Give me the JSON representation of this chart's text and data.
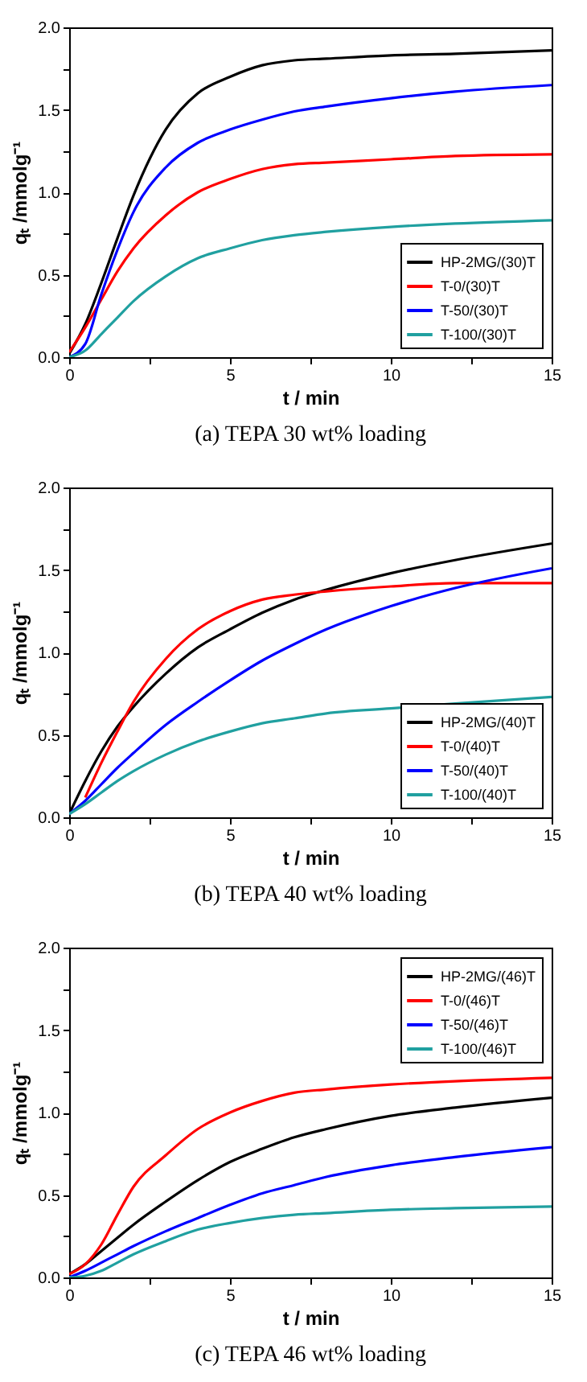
{
  "chart_data": [
    {
      "type": "line",
      "title": "(a)  TEPA 30 wt% loading",
      "xlabel": "t / min",
      "ylabel": "qₜ /mmolg⁻¹",
      "legend": "bottom right",
      "grid": false,
      "xlim": [
        0,
        15
      ],
      "ylim": [
        0,
        2.0
      ],
      "xticks": [
        0,
        {
          "value": 2.5,
          "label": null
        },
        5,
        {
          "value": 7.5,
          "label": null
        },
        10,
        {
          "value": 12.5,
          "label": null
        },
        15
      ],
      "yticks": [
        {
          "value": 0,
          "label": "0.0"
        },
        {
          "value": 0.25,
          "label": null
        },
        {
          "value": 0.5,
          "label": "0.5"
        },
        {
          "value": 0.75,
          "label": null
        },
        {
          "value": 1,
          "label": "1.0"
        },
        {
          "value": 1.25,
          "label": null
        },
        {
          "value": 1.5,
          "label": "1.5"
        },
        {
          "value": 1.75,
          "label": null
        },
        {
          "value": 2,
          "label": "2.0"
        }
      ],
      "x": [
        0,
        0.5,
        1,
        1.5,
        2,
        3,
        4,
        5,
        6,
        7,
        8,
        10,
        12,
        15
      ],
      "series": [
        {
          "name": "HP-2MG/(30)T",
          "color": "#000000",
          "values": [
            0.02,
            0.2,
            0.45,
            0.72,
            0.98,
            1.38,
            1.6,
            1.7,
            1.77,
            1.8,
            1.81,
            1.83,
            1.84,
            1.86
          ]
        },
        {
          "name": "T-0/(30)T",
          "color": "#ff0000",
          "values": [
            0.03,
            0.18,
            0.35,
            0.52,
            0.66,
            0.86,
            1.0,
            1.08,
            1.14,
            1.17,
            1.18,
            1.2,
            1.22,
            1.23
          ]
        },
        {
          "name": "T-50/(30)T",
          "color": "#0000ff",
          "values": [
            0,
            0.08,
            0.38,
            0.65,
            0.88,
            1.15,
            1.3,
            1.38,
            1.44,
            1.49,
            1.52,
            1.57,
            1.61,
            1.65
          ]
        },
        {
          "name": "T-100/(30)T",
          "color": "#20a0a0",
          "values": [
            0,
            0.04,
            0.14,
            0.24,
            0.34,
            0.49,
            0.6,
            0.66,
            0.71,
            0.74,
            0.76,
            0.79,
            0.81,
            0.83
          ]
        }
      ]
    },
    {
      "type": "line",
      "title": "(b)  TEPA 40 wt% loading",
      "xlabel": "t / min",
      "ylabel": "qₜ /mmolg⁻¹",
      "legend": "bottom right",
      "grid": false,
      "xlim": [
        0,
        15
      ],
      "ylim": [
        0,
        2.0
      ],
      "xticks": [
        0,
        {
          "value": 2.5,
          "label": null
        },
        5,
        {
          "value": 7.5,
          "label": null
        },
        10,
        {
          "value": 12.5,
          "label": null
        },
        15
      ],
      "yticks": [
        {
          "value": 0,
          "label": "0.0"
        },
        {
          "value": 0.25,
          "label": null
        },
        {
          "value": 0.5,
          "label": "0.5"
        },
        {
          "value": 0.75,
          "label": null
        },
        {
          "value": 1,
          "label": "1.0"
        },
        {
          "value": 1.25,
          "label": null
        },
        {
          "value": 1.5,
          "label": "1.5"
        },
        {
          "value": 1.75,
          "label": null
        },
        {
          "value": 2,
          "label": "2.0"
        }
      ],
      "x": [
        0,
        0.5,
        1,
        1.5,
        2,
        3,
        4,
        5,
        6,
        7,
        8,
        10,
        12,
        15
      ],
      "series": [
        {
          "name": "HP-2MG/(40)T",
          "color": "#000000",
          "values": [
            0.02,
            0.22,
            0.4,
            0.55,
            0.67,
            0.87,
            1.03,
            1.14,
            1.24,
            1.32,
            1.38,
            1.48,
            1.56,
            1.66
          ]
        },
        {
          "name": "T-0/(40)T",
          "color": "#ff0000",
          "values": [
            null,
            0.12,
            0.33,
            0.52,
            0.7,
            0.96,
            1.14,
            1.25,
            1.32,
            1.35,
            1.37,
            1.4,
            1.42,
            1.42
          ]
        },
        {
          "name": "T-50/(40)T",
          "color": "#0000ff",
          "values": [
            0.02,
            0.1,
            0.2,
            0.3,
            0.39,
            0.56,
            0.7,
            0.83,
            0.95,
            1.05,
            1.14,
            1.28,
            1.39,
            1.51
          ]
        },
        {
          "name": "T-100/(40)T",
          "color": "#20a0a0",
          "values": [
            0.02,
            0.08,
            0.15,
            0.22,
            0.28,
            0.38,
            0.46,
            0.52,
            0.57,
            0.6,
            0.63,
            0.66,
            0.69,
            0.73
          ]
        }
      ]
    },
    {
      "type": "line",
      "title": "(c)  TEPA 46 wt% loading",
      "xlabel": "t / min",
      "ylabel": "qₜ /mmolg⁻¹",
      "legend": "top right",
      "grid": false,
      "xlim": [
        0,
        15
      ],
      "ylim": [
        0,
        2.0
      ],
      "xticks": [
        0,
        {
          "value": 2.5,
          "label": null
        },
        5,
        {
          "value": 7.5,
          "label": null
        },
        10,
        {
          "value": 12.5,
          "label": null
        },
        15
      ],
      "yticks": [
        {
          "value": 0,
          "label": "0.0"
        },
        {
          "value": 0.25,
          "label": null
        },
        {
          "value": 0.5,
          "label": "0.5"
        },
        {
          "value": 0.75,
          "label": null
        },
        {
          "value": 1,
          "label": "1.0"
        },
        {
          "value": 1.25,
          "label": null
        },
        {
          "value": 1.5,
          "label": "1.5"
        },
        {
          "value": 1.75,
          "label": null
        },
        {
          "value": 2,
          "label": "2.0"
        }
      ],
      "x": [
        0,
        0.5,
        1,
        1.5,
        2,
        3,
        4,
        5,
        6,
        7,
        8,
        10,
        12,
        15
      ],
      "series": [
        {
          "name": "HP-2MG/(46)T",
          "color": "#000000",
          "values": [
            0.02,
            0.08,
            0.16,
            0.24,
            0.32,
            0.46,
            0.59,
            0.7,
            0.78,
            0.85,
            0.9,
            0.98,
            1.03,
            1.09
          ]
        },
        {
          "name": "T-0/(46)T",
          "color": "#ff0000",
          "values": [
            0.02,
            0.08,
            0.2,
            0.38,
            0.55,
            0.74,
            0.9,
            1.0,
            1.07,
            1.12,
            1.14,
            1.17,
            1.19,
            1.21
          ]
        },
        {
          "name": "T-50/(46)T",
          "color": "#0000ff",
          "values": [
            0,
            0.04,
            0.09,
            0.14,
            0.19,
            0.28,
            0.36,
            0.44,
            0.51,
            0.56,
            0.61,
            0.68,
            0.73,
            0.79
          ]
        },
        {
          "name": "T-100/(46)T",
          "color": "#20a0a0",
          "values": [
            0,
            0.01,
            0.04,
            0.09,
            0.14,
            0.22,
            0.29,
            0.33,
            0.36,
            0.38,
            0.39,
            0.41,
            0.42,
            0.43
          ]
        }
      ]
    }
  ]
}
